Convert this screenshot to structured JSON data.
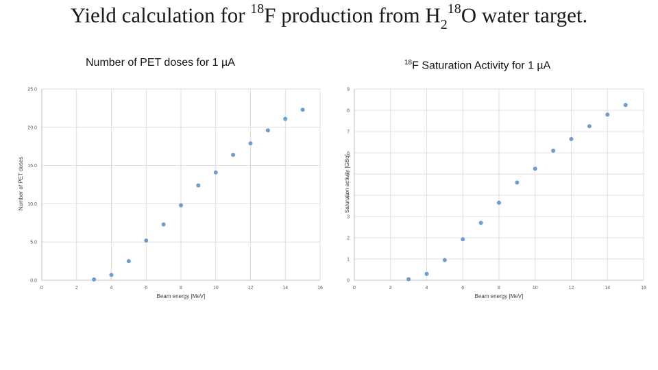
{
  "title": {
    "prefix": "Yield calculation for ",
    "sup1": "18",
    "mid1": "F production from H",
    "sub": "2",
    "sup2": "18",
    "suffix": "O  water target."
  },
  "colors": {
    "marker": "#6a9ed0",
    "grid": "#d9d9d9",
    "axis": "#bfbfbf"
  },
  "chart_data": [
    {
      "type": "scatter",
      "title": "Number of PET doses for 1 µA",
      "xlabel": "Beam energy [MeV]",
      "ylabel": "Number of PET doses",
      "xlim": [
        0,
        16
      ],
      "ylim": [
        0,
        25
      ],
      "xticks": [
        0,
        2,
        4,
        6,
        8,
        10,
        12,
        14,
        16
      ],
      "xtick_labels": [
        "0",
        "2",
        "4",
        "6",
        "8",
        "10",
        "12",
        "14",
        "16"
      ],
      "yticks": [
        0,
        5,
        10,
        15,
        20,
        25
      ],
      "ytick_labels": [
        "0.0",
        "5.0",
        "10.0",
        "15.0",
        "20.0",
        "25.0"
      ],
      "grid": true,
      "x": [
        3,
        4,
        5,
        6,
        7,
        8,
        9,
        10,
        11,
        12,
        13,
        14,
        15
      ],
      "y": [
        0.1,
        0.7,
        2.5,
        5.2,
        7.3,
        9.8,
        12.4,
        14.1,
        16.4,
        17.9,
        19.6,
        21.1,
        22.3
      ]
    },
    {
      "type": "scatter",
      "title_sup": "18",
      "title": "F  Saturation Activity for 1 µA",
      "xlabel": "Beam energy [MeV]",
      "ylabel": "Saturation activity [GBq]",
      "xlim": [
        0,
        16
      ],
      "ylim": [
        0,
        9
      ],
      "xticks": [
        0,
        2,
        4,
        6,
        8,
        10,
        12,
        14,
        16
      ],
      "xtick_labels": [
        "0",
        "2",
        "4",
        "6",
        "8",
        "10",
        "12",
        "14",
        "16"
      ],
      "yticks": [
        0,
        1,
        2,
        3,
        4,
        5,
        6,
        7,
        8,
        9
      ],
      "ytick_labels": [
        "0",
        "1",
        "2",
        "3",
        "4",
        "5",
        "6",
        "7",
        "8",
        "9"
      ],
      "grid": true,
      "x": [
        3,
        4,
        5,
        6,
        7,
        8,
        9,
        10,
        11,
        12,
        13,
        14,
        15
      ],
      "y": [
        0.05,
        0.3,
        0.95,
        1.93,
        2.7,
        3.65,
        4.6,
        5.25,
        6.1,
        6.65,
        7.25,
        7.8,
        8.25
      ]
    }
  ]
}
